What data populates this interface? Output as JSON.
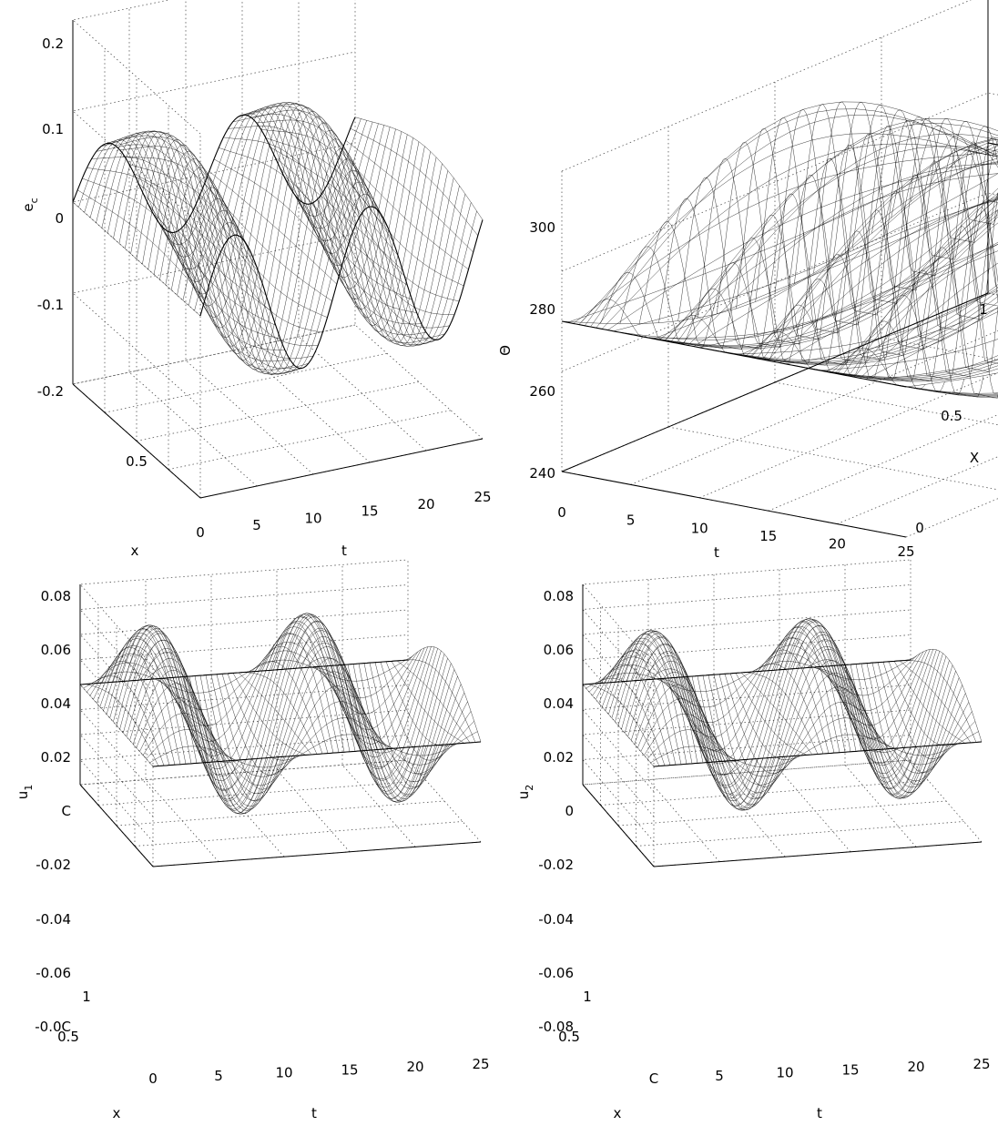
{
  "chart_data": [
    {
      "type": "surface",
      "zlabel": "e",
      "zlabel_sub": "c",
      "xlabel": "x",
      "tlabel": "t",
      "z_ticks": [
        "0.2",
        "0.1",
        "0",
        "-0.1",
        "-0.2"
      ],
      "t_ticks": [
        "0",
        "5",
        "10",
        "15",
        "20",
        "25"
      ],
      "x_ticks": [
        "0.5"
      ],
      "zlim": [
        -0.2,
        0.2
      ],
      "tlim": [
        0,
        25
      ],
      "xlim": [
        0,
        1
      ]
    },
    {
      "type": "surface",
      "zlabel": "Θ",
      "xlabel": "X",
      "tlabel": "t",
      "z_ticks": [
        "300",
        "280",
        "260",
        "240"
      ],
      "t_ticks": [
        "0",
        "5",
        "10",
        "15",
        "20",
        "25"
      ],
      "x_ticks": [
        "0",
        "0.5",
        "1"
      ],
      "zlim": [
        240,
        310
      ],
      "tlim": [
        0,
        25
      ],
      "xlim": [
        0,
        1
      ]
    },
    {
      "type": "surface",
      "zlabel": "u",
      "zlabel_sub": "1",
      "xlabel": "x",
      "tlabel": "t",
      "z_ticks": [
        "0.08",
        "0.06",
        "0.04",
        "0.02",
        "0",
        "-0.02",
        "-0.04",
        "-0.06",
        "-0.08"
      ],
      "z_ticks_shown": [
        "0.08",
        "0.06",
        "0.04",
        "0.02",
        "C",
        "-0.02",
        "-0.04",
        "-0.06",
        "-0.0C"
      ],
      "t_ticks": [
        "0",
        "5",
        "10",
        "15",
        "20",
        "25"
      ],
      "x_ticks": [
        "1",
        "0.5"
      ],
      "zlim": [
        -0.08,
        0.08
      ],
      "tlim": [
        0,
        25
      ],
      "xlim": [
        0,
        1
      ]
    },
    {
      "type": "surface",
      "zlabel": "u",
      "zlabel_sub": "2",
      "xlabel": "x",
      "tlabel": "t",
      "z_ticks": [
        "0.08",
        "0.06",
        "0.04",
        "0.02",
        "0",
        "-0.02",
        "-0.04",
        "-0.06",
        "-0.08"
      ],
      "t_ticks": [
        "0",
        "5",
        "10",
        "15",
        "20",
        "25"
      ],
      "t_ticks_shown": [
        "C",
        "5",
        "10",
        "15",
        "20",
        "25"
      ],
      "x_ticks": [
        "1",
        "0.5"
      ],
      "zlim": [
        -0.08,
        0.08
      ],
      "tlim": [
        0,
        25
      ],
      "xlim": [
        0,
        1
      ]
    }
  ]
}
